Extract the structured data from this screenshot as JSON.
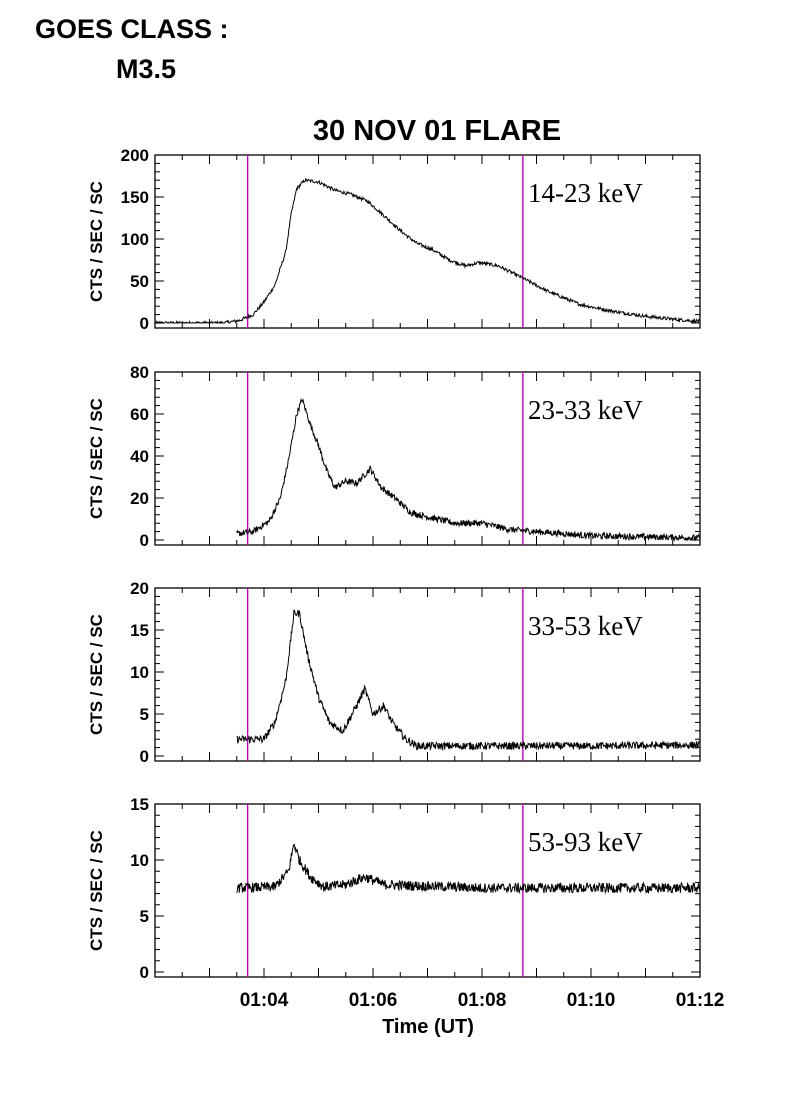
{
  "header": {
    "goes_label": "GOES CLASS :",
    "goes_class": "M3.5"
  },
  "chart_data": {
    "type": "line",
    "title": "30 NOV 01 FLARE",
    "xlabel": "Time (UT)",
    "ylabel": "CTS / SEC / SC",
    "x_unit": "minutes after 01:00 UT",
    "xlim": [
      2.0,
      12.0
    ],
    "x_ticks": [
      4,
      6,
      8,
      10,
      12
    ],
    "x_tick_labels": [
      "01:04",
      "01:06",
      "01:08",
      "01:10",
      "01:12"
    ],
    "vertical_markers": {
      "times": [
        3.7,
        8.75
      ],
      "color": "#c000c0"
    },
    "grid": false,
    "series_color": "#000000",
    "panels": [
      {
        "band": "14-23 keV",
        "ylim": [
          0,
          200
        ],
        "y_ticks": [
          0,
          50,
          100,
          150,
          200
        ],
        "noise": 2,
        "series": [
          {
            "x": 2.0,
            "y": 0
          },
          {
            "x": 3.25,
            "y": 0
          },
          {
            "x": 3.55,
            "y": 3
          },
          {
            "x": 3.8,
            "y": 10
          },
          {
            "x": 4.0,
            "y": 25
          },
          {
            "x": 4.2,
            "y": 45
          },
          {
            "x": 4.4,
            "y": 85
          },
          {
            "x": 4.5,
            "y": 130
          },
          {
            "x": 4.6,
            "y": 160
          },
          {
            "x": 4.75,
            "y": 170
          },
          {
            "x": 5.0,
            "y": 168
          },
          {
            "x": 5.3,
            "y": 158
          },
          {
            "x": 5.6,
            "y": 153
          },
          {
            "x": 5.9,
            "y": 145
          },
          {
            "x": 6.2,
            "y": 128
          },
          {
            "x": 6.5,
            "y": 110
          },
          {
            "x": 6.8,
            "y": 95
          },
          {
            "x": 7.1,
            "y": 87
          },
          {
            "x": 7.4,
            "y": 75
          },
          {
            "x": 7.7,
            "y": 68
          },
          {
            "x": 7.95,
            "y": 72
          },
          {
            "x": 8.3,
            "y": 68
          },
          {
            "x": 8.7,
            "y": 55
          },
          {
            "x": 9.2,
            "y": 38
          },
          {
            "x": 9.8,
            "y": 22
          },
          {
            "x": 10.4,
            "y": 14
          },
          {
            "x": 11.0,
            "y": 8
          },
          {
            "x": 11.6,
            "y": 4
          },
          {
            "x": 12.0,
            "y": 2
          }
        ]
      },
      {
        "band": "23-33 keV",
        "ylim": [
          0,
          80
        ],
        "y_ticks": [
          0,
          20,
          40,
          60,
          80
        ],
        "noise": 1.5,
        "series": [
          {
            "x": 3.5,
            "y": 3
          },
          {
            "x": 3.8,
            "y": 4
          },
          {
            "x": 4.1,
            "y": 9
          },
          {
            "x": 4.3,
            "y": 20
          },
          {
            "x": 4.45,
            "y": 38
          },
          {
            "x": 4.6,
            "y": 60
          },
          {
            "x": 4.7,
            "y": 67
          },
          {
            "x": 4.85,
            "y": 55
          },
          {
            "x": 5.0,
            "y": 45
          },
          {
            "x": 5.15,
            "y": 33
          },
          {
            "x": 5.3,
            "y": 25
          },
          {
            "x": 5.5,
            "y": 28
          },
          {
            "x": 5.7,
            "y": 27
          },
          {
            "x": 5.95,
            "y": 34
          },
          {
            "x": 6.15,
            "y": 25
          },
          {
            "x": 6.4,
            "y": 20
          },
          {
            "x": 6.7,
            "y": 13
          },
          {
            "x": 7.0,
            "y": 11
          },
          {
            "x": 7.5,
            "y": 8
          },
          {
            "x": 8.0,
            "y": 8
          },
          {
            "x": 8.5,
            "y": 5
          },
          {
            "x": 9.0,
            "y": 4
          },
          {
            "x": 10.0,
            "y": 2
          },
          {
            "x": 11.0,
            "y": 1.5
          },
          {
            "x": 12.0,
            "y": 1
          }
        ]
      },
      {
        "band": "33-53 keV",
        "ylim": [
          0,
          20
        ],
        "y_ticks": [
          0,
          5,
          10,
          15,
          20
        ],
        "noise": 0.45,
        "series": [
          {
            "x": 3.5,
            "y": 2
          },
          {
            "x": 4.0,
            "y": 2
          },
          {
            "x": 4.2,
            "y": 4
          },
          {
            "x": 4.4,
            "y": 9
          },
          {
            "x": 4.55,
            "y": 17
          },
          {
            "x": 4.65,
            "y": 17
          },
          {
            "x": 4.8,
            "y": 12
          },
          {
            "x": 5.0,
            "y": 7
          },
          {
            "x": 5.2,
            "y": 4
          },
          {
            "x": 5.45,
            "y": 3
          },
          {
            "x": 5.7,
            "y": 6
          },
          {
            "x": 5.85,
            "y": 8
          },
          {
            "x": 6.0,
            "y": 5
          },
          {
            "x": 6.2,
            "y": 6
          },
          {
            "x": 6.35,
            "y": 4
          },
          {
            "x": 6.6,
            "y": 2
          },
          {
            "x": 6.8,
            "y": 1.2
          },
          {
            "x": 8.0,
            "y": 1.2
          },
          {
            "x": 10.0,
            "y": 1.2
          },
          {
            "x": 12.0,
            "y": 1.3
          }
        ]
      },
      {
        "band": "53-93 keV",
        "ylim": [
          0,
          15
        ],
        "y_ticks": [
          0,
          5,
          10,
          15
        ],
        "noise": 0.45,
        "series": [
          {
            "x": 3.5,
            "y": 7.5
          },
          {
            "x": 4.2,
            "y": 7.6
          },
          {
            "x": 4.45,
            "y": 9
          },
          {
            "x": 4.55,
            "y": 11.5
          },
          {
            "x": 4.65,
            "y": 10
          },
          {
            "x": 4.85,
            "y": 8.5
          },
          {
            "x": 5.1,
            "y": 7.6
          },
          {
            "x": 5.5,
            "y": 7.8
          },
          {
            "x": 5.85,
            "y": 8.5
          },
          {
            "x": 6.2,
            "y": 7.8
          },
          {
            "x": 8.0,
            "y": 7.5
          },
          {
            "x": 10.0,
            "y": 7.5
          },
          {
            "x": 12.0,
            "y": 7.5
          }
        ]
      }
    ]
  }
}
